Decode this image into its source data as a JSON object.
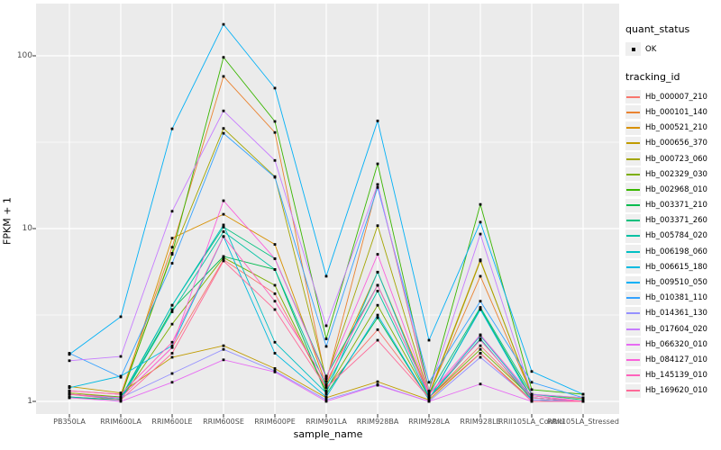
{
  "figure": {
    "x_axis_title": "sample_name",
    "y_axis_title": "FPKM + 1",
    "legend_quant_title": "quant_status",
    "legend_quant_ok": "OK",
    "legend_tracking_title": "tracking_id"
  },
  "chart_data": {
    "type": "line",
    "title": "",
    "xlabel": "sample_name",
    "ylabel": "FPKM + 1",
    "y_scale": "log10",
    "y_ticks": [
      1,
      10,
      100
    ],
    "y_minor_ticks": [
      3.162,
      31.62
    ],
    "ylim": [
      0.85,
      200
    ],
    "grid": "on",
    "legend_position": "right",
    "panel_bg": "#ebebeb",
    "grid_color": "#ffffff",
    "point_color": "#000000",
    "quant_status": [
      {
        "label": "OK",
        "marker": "black-point"
      }
    ],
    "categories": [
      "PB350LA",
      "RRIM600LA",
      "RRIM600LE",
      "RRIM600SE",
      "RRIM600PE",
      "RRIM901LA",
      "RRIM928BA",
      "RRIM928LA",
      "RRIM928LE",
      "RRII105LA_Control",
      "RRII105LA_Stressed"
    ],
    "series": [
      {
        "name": "Hb_000007_210",
        "color": "#F8766D",
        "values": [
          1.1,
          1.05,
          2.05,
          6.6,
          4.2,
          1.2,
          2.6,
          1.05,
          2.1,
          1.05,
          1.0
        ]
      },
      {
        "name": "Hb_000101_140",
        "color": "#EA8331",
        "values": [
          1.15,
          1.1,
          7.8,
          76,
          36,
          1.3,
          18,
          1.1,
          5.3,
          1.1,
          1.05
        ]
      },
      {
        "name": "Hb_000521_210",
        "color": "#D89000",
        "values": [
          1.1,
          1.05,
          8.8,
          12.1,
          8.1,
          1.25,
          5.6,
          1.1,
          6.6,
          1.08,
          1.0
        ]
      },
      {
        "name": "Hb_000656_370",
        "color": "#C09B00",
        "values": [
          1.22,
          1.12,
          1.8,
          2.1,
          1.55,
          1.05,
          1.3,
          1.02,
          1.9,
          1.02,
          1.0
        ]
      },
      {
        "name": "Hb_000723_060",
        "color": "#A3A500",
        "values": [
          1.12,
          1.06,
          7.1,
          38,
          20,
          1.35,
          10.4,
          1.08,
          6.5,
          1.1,
          1.04
        ]
      },
      {
        "name": "Hb_002329_030",
        "color": "#7CAE00",
        "values": [
          1.05,
          1.02,
          2.8,
          6.8,
          4.7,
          1.15,
          3.6,
          1.05,
          2.0,
          1.05,
          1.0
        ]
      },
      {
        "name": "Hb_002968_010",
        "color": "#39B600",
        "values": [
          1.1,
          1.06,
          7.2,
          98,
          41.7,
          2.3,
          23.7,
          1.15,
          13.8,
          1.17,
          1.1
        ]
      },
      {
        "name": "Hb_003371_210",
        "color": "#00BB4E",
        "values": [
          1.06,
          1.02,
          3.4,
          6.9,
          5.8,
          1.1,
          3.05,
          1.02,
          3.44,
          1.05,
          1.0
        ]
      },
      {
        "name": "Hb_003371_260",
        "color": "#00BF7D",
        "values": [
          1.1,
          1.05,
          3.6,
          10.2,
          6.7,
          1.4,
          4.7,
          1.1,
          3.5,
          1.1,
          1.02
        ]
      },
      {
        "name": "Hb_005784_020",
        "color": "#00C1A3",
        "values": [
          1.06,
          1.02,
          3.3,
          9.6,
          5.8,
          1.22,
          4.35,
          1.05,
          2.3,
          1.02,
          1.0
        ]
      },
      {
        "name": "Hb_006198_060",
        "color": "#00BFC4",
        "values": [
          1.1,
          1.03,
          3.6,
          10.5,
          2.2,
          1.12,
          5.6,
          1.05,
          2.4,
          1.05,
          1.0
        ]
      },
      {
        "name": "Hb_006615_180",
        "color": "#00BAE0",
        "values": [
          1.2,
          1.4,
          2.1,
          9.0,
          1.9,
          1.06,
          3.16,
          1.02,
          3.4,
          1.02,
          1.0
        ]
      },
      {
        "name": "Hb_009510_050",
        "color": "#00B0F6",
        "values": [
          1.87,
          3.09,
          37.8,
          152,
          65,
          5.3,
          42,
          2.26,
          10.9,
          1.49,
          1.1
        ]
      },
      {
        "name": "Hb_010381_110",
        "color": "#35A2FF",
        "values": [
          1.9,
          1.38,
          6.3,
          35.6,
          19.8,
          2.08,
          17.3,
          1.29,
          3.8,
          1.29,
          1.05
        ]
      },
      {
        "name": "Hb_014361_130",
        "color": "#9590FF",
        "values": [
          1.1,
          1.05,
          1.45,
          2.0,
          1.5,
          1.02,
          1.25,
          1.0,
          1.8,
          1.02,
          1.0
        ]
      },
      {
        "name": "Hb_017604_020",
        "color": "#C77CFF",
        "values": [
          1.72,
          1.82,
          12.6,
          48,
          24.8,
          2.74,
          18,
          1.14,
          9.3,
          1.1,
          1.05
        ]
      },
      {
        "name": "Hb_066320_010",
        "color": "#E76BF3",
        "values": [
          1.05,
          1.0,
          1.29,
          1.74,
          1.48,
          1.0,
          1.24,
          1.0,
          1.26,
          1.0,
          1.0
        ]
      },
      {
        "name": "Hb_084127_010",
        "color": "#FA62DB",
        "values": [
          1.1,
          1.05,
          2.05,
          14.5,
          6.7,
          1.37,
          7.1,
          1.1,
          2.43,
          1.08,
          1.0
        ]
      },
      {
        "name": "Hb_145139_010",
        "color": "#FF62BC",
        "values": [
          1.15,
          1.1,
          2.2,
          9.0,
          3.8,
          1.3,
          4.7,
          1.1,
          2.26,
          1.05,
          1.0
        ]
      },
      {
        "name": "Hb_169620_010",
        "color": "#FF6A98",
        "values": [
          1.1,
          1.02,
          1.9,
          6.5,
          3.4,
          1.2,
          2.26,
          1.05,
          1.9,
          1.0,
          1.0
        ]
      }
    ]
  }
}
